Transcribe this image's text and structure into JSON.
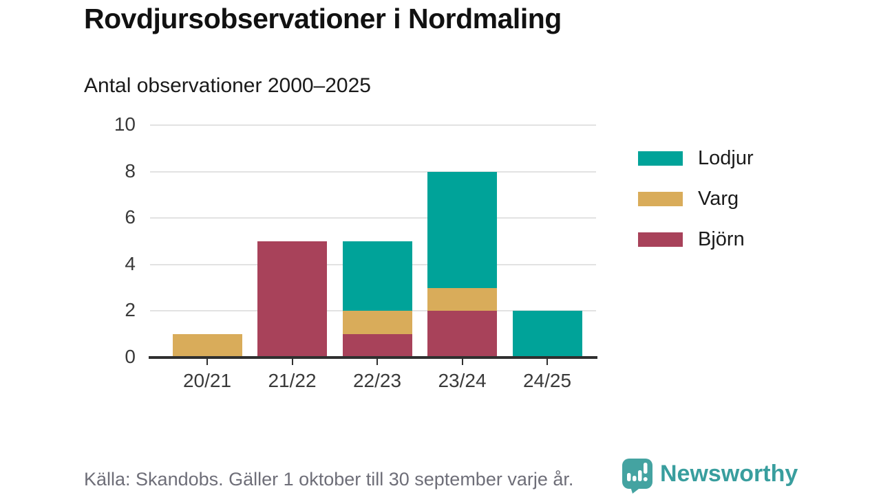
{
  "title": "Rovdjursobservationer i Nordmaling",
  "subtitle": "Antal observationer 2000–2025",
  "footer": {
    "source": "Källa: Skandobs. Gäller 1 oktober till 30 september varje år.",
    "brand": "Newsworthy"
  },
  "colors": {
    "lodjur": "#00A399",
    "varg": "#D9AC5A",
    "bjorn": "#A8425A",
    "brand_teal": "#3E9E9E",
    "grid": "#E2E2E2",
    "axis": "#2F2F2F",
    "muted_text": "#6E6E78"
  },
  "legend": [
    {
      "label": "Lodjur",
      "color": "#00A399"
    },
    {
      "label": "Varg",
      "color": "#D9AC5A"
    },
    {
      "label": "Björn",
      "color": "#A8425A"
    }
  ],
  "chart_data": {
    "type": "bar",
    "stacked": true,
    "title": "Rovdjursobservationer i Nordmaling",
    "subtitle": "Antal observationer 2000–2025",
    "categories": [
      "20/21",
      "21/22",
      "22/23",
      "23/24",
      "24/25"
    ],
    "series": [
      {
        "name": "Björn",
        "color": "#A8425A",
        "values": [
          0,
          5,
          1,
          2,
          0
        ]
      },
      {
        "name": "Varg",
        "color": "#D9AC5A",
        "values": [
          1,
          0,
          1,
          1,
          0
        ]
      },
      {
        "name": "Lodjur",
        "color": "#00A399",
        "values": [
          0,
          0,
          3,
          5,
          2
        ]
      }
    ],
    "totals": [
      1,
      5,
      5,
      8,
      2
    ],
    "xlabel": "",
    "ylabel": "Antal observationer",
    "ylim": [
      0,
      10
    ],
    "yticks": [
      0,
      2,
      4,
      6,
      8,
      10
    ],
    "grid": true,
    "legend_position": "right"
  }
}
